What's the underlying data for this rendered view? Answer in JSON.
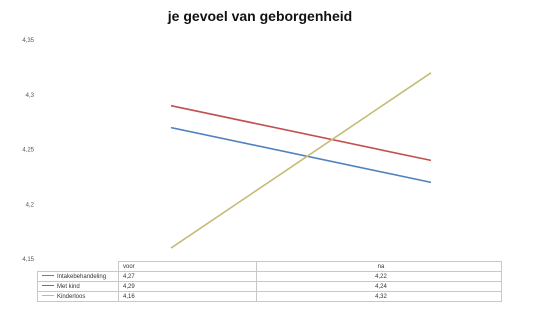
{
  "chart_data": {
    "type": "line",
    "title": "je gevoel van geborgenheid",
    "categories": [
      "voor",
      "na"
    ],
    "ylim": [
      4.15,
      4.35
    ],
    "yticks": [
      "4,35",
      "4,3",
      "4,25",
      "4,2",
      "4,15"
    ],
    "grid": false,
    "legend": "table-bottom",
    "series": [
      {
        "name": "Intakebehandeling",
        "values": [
          4.27,
          4.22
        ],
        "display": [
          "4,27",
          "4,22"
        ],
        "color": "#4f81bd"
      },
      {
        "name": "Met kind",
        "values": [
          4.29,
          4.24
        ],
        "display": [
          "4,29",
          "4,24"
        ],
        "color": "#c0504d"
      },
      {
        "name": "Kinderloos",
        "values": [
          4.16,
          4.32
        ],
        "display": [
          "4,16",
          "4,32"
        ],
        "color": "#c4bd78"
      }
    ]
  }
}
